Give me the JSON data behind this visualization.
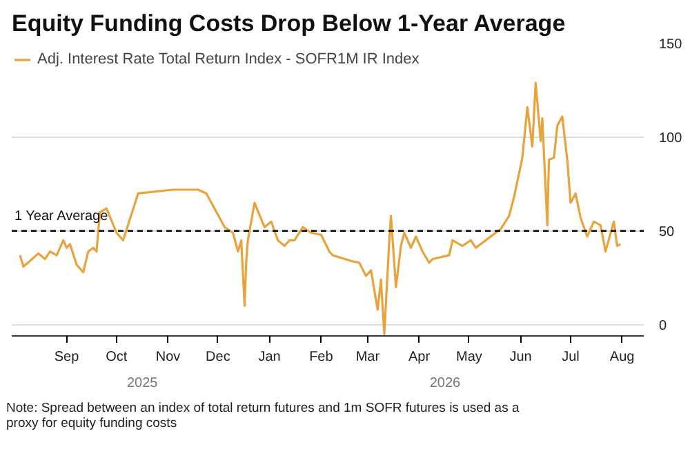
{
  "chart_data": {
    "type": "line",
    "title": "Equity Funding Costs Drop Below 1-Year Average",
    "xlim": [
      "2025-07-30",
      "2026-08-14"
    ],
    "ylim": [
      -6,
      150
    ],
    "xticks": [
      {
        "value": "2025-09-01",
        "label": "Sep"
      },
      {
        "value": "2025-10-01",
        "label": "Oct"
      },
      {
        "value": "2025-11-01",
        "label": "Nov"
      },
      {
        "value": "2025-12-01",
        "label": "Dec"
      },
      {
        "value": "2026-01-01",
        "label": "Jan"
      },
      {
        "value": "2026-02-01",
        "label": "Feb"
      },
      {
        "value": "2026-03-01",
        "label": "Mar"
      },
      {
        "value": "2026-04-01",
        "label": "Apr"
      },
      {
        "value": "2026-05-01",
        "label": "May"
      },
      {
        "value": "2026-06-01",
        "label": "Jun"
      },
      {
        "value": "2026-07-01",
        "label": "Jul"
      },
      {
        "value": "2026-08-01",
        "label": "Aug"
      }
    ],
    "yticks": [
      0,
      50,
      100,
      150
    ],
    "grid": "y",
    "legend": "top left",
    "marker": "none",
    "line_style": "solid",
    "ref_lines": [
      {
        "axis": "y",
        "value": 50,
        "label": "1 Year Average",
        "color": "#000000",
        "line_style": "dashed"
      }
    ],
    "annotations": [
      "2025",
      "2026",
      "Note: Spread between an index of total return futures and 1m SOFR futures is used as a proxy for equity funding costs"
    ],
    "series": [
      {
        "name": "Adj. Interest Rate Total Return Index - SOFR1M IR Index",
        "color": "#e8a33d",
        "x": [
          "2025-08-04",
          "2025-08-06",
          "2025-08-10",
          "2025-08-15",
          "2025-08-19",
          "2025-08-22",
          "2025-08-26",
          "2025-08-30",
          "2025-09-01",
          "2025-09-03",
          "2025-09-07",
          "2025-09-11",
          "2025-09-14",
          "2025-09-17",
          "2025-09-19",
          "2025-09-21",
          "2025-09-25",
          "2025-10-01",
          "2025-10-05",
          "2025-10-14",
          "2025-11-04",
          "2025-11-19",
          "2025-11-24",
          "2025-12-05",
          "2025-12-10",
          "2025-12-13",
          "2025-12-15",
          "2025-12-17",
          "2025-12-18",
          "2025-12-19",
          "2025-12-23",
          "2025-12-29",
          "2026-01-02",
          "2026-01-06",
          "2026-01-10",
          "2026-01-13",
          "2026-01-16",
          "2026-01-21",
          "2026-01-26",
          "2026-02-01",
          "2026-02-06",
          "2026-02-08",
          "2026-02-19",
          "2026-02-24",
          "2026-02-28",
          "2026-03-03",
          "2026-03-07",
          "2026-03-09",
          "2026-03-11",
          "2026-03-14",
          "2026-03-15",
          "2026-03-18",
          "2026-03-21",
          "2026-03-23",
          "2026-03-27",
          "2026-03-30",
          "2026-04-03",
          "2026-04-07",
          "2026-04-09",
          "2026-04-19",
          "2026-04-21",
          "2026-04-27",
          "2026-05-02",
          "2026-05-05",
          "2026-05-11",
          "2026-05-20",
          "2026-05-25",
          "2026-05-28",
          "2026-06-02",
          "2026-06-05",
          "2026-06-08",
          "2026-06-10",
          "2026-06-13",
          "2026-06-14",
          "2026-06-17",
          "2026-06-18",
          "2026-06-21",
          "2026-06-23",
          "2026-06-26",
          "2026-06-29",
          "2026-07-01",
          "2026-07-04",
          "2026-07-07",
          "2026-07-11",
          "2026-07-15",
          "2026-07-19",
          "2026-07-22",
          "2026-07-27",
          "2026-07-29",
          "2026-07-31"
        ],
        "values": [
          37,
          31,
          34,
          38,
          35,
          39,
          37,
          45,
          41,
          43,
          32,
          28,
          39,
          41,
          39,
          60,
          62,
          49,
          45,
          70,
          72,
          72,
          70,
          52,
          49,
          39,
          45,
          10,
          34,
          45,
          65,
          52,
          55,
          45,
          42,
          45,
          45,
          52,
          49,
          48,
          39,
          37,
          34,
          33,
          26,
          29,
          8,
          24,
          -5,
          45,
          58,
          20,
          42,
          49,
          41,
          47,
          39,
          33,
          35,
          37,
          45,
          42,
          45,
          41,
          45,
          51,
          58,
          68,
          89,
          116,
          95,
          129,
          98,
          110,
          53,
          88,
          89,
          106,
          111,
          88,
          65,
          70,
          57,
          47,
          55,
          53,
          39,
          55,
          42,
          43
        ]
      }
    ]
  }
}
